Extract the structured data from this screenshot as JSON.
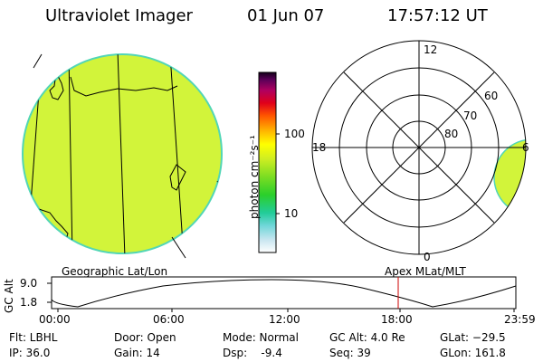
{
  "header": {
    "title": "Ultraviolet Imager",
    "date": "01 Jun 07",
    "time": "17:57:12 UT"
  },
  "colors": {
    "disk_fill": "#d2f43a",
    "disk_edge": "#52d6b6",
    "red_marker": "#cc0000"
  },
  "colorbar": {
    "unit_label": "photon cm⁻²s⁻¹",
    "ticks": [
      "100",
      "10"
    ],
    "scale": "log"
  },
  "polar": {
    "hour_labels": [
      "12",
      "18",
      "6",
      "0"
    ],
    "lat_labels": [
      "60",
      "70",
      "80"
    ]
  },
  "panel_labels": {
    "left": "Geographic Lat/Lon",
    "right": "Apex MLat/MLT"
  },
  "altitude_plot": {
    "ylabel": "GC Alt",
    "y_ticks": [
      "9.0",
      "1.8"
    ],
    "x_ticks": [
      "00:00",
      "06:00",
      "12:00",
      "18:00",
      "23:59"
    ],
    "current_time": "17:57"
  },
  "info": {
    "flt": "Flt: LBHL",
    "ip": "IP: 36.0",
    "door": "Door: Open",
    "gain": "Gain: 14",
    "mode": "Mode: Normal",
    "dsp": "Dsp:    -9.4",
    "gcalt": "GC Alt: 4.0 Re",
    "seq": "Seq: 39",
    "glat": "GLat: −29.5",
    "glon": "GLon: 161.8"
  }
}
